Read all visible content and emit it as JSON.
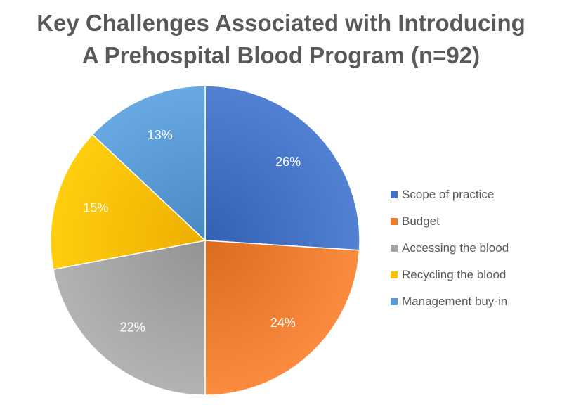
{
  "chart_data": {
    "type": "pie",
    "title": "Key Challenges Associated with Introducing A Prehospital Blood Program (n=92)",
    "title_lines": [
      "Key Challenges Associated with Introducing",
      "A Prehospital Blood Program (n=92)"
    ],
    "categories": [
      "Scope of practice",
      "Budget",
      "Accessing the blood",
      "Recycling the blood",
      "Management buy-in"
    ],
    "values": [
      26,
      24,
      22,
      15,
      13
    ],
    "labels": [
      "26%",
      "24%",
      "22%",
      "15%",
      "13%"
    ],
    "colors": [
      "#4472C4",
      "#ED7D31",
      "#A5A5A5",
      "#FFC000",
      "#5B9BD5"
    ],
    "legend_position": "right"
  }
}
